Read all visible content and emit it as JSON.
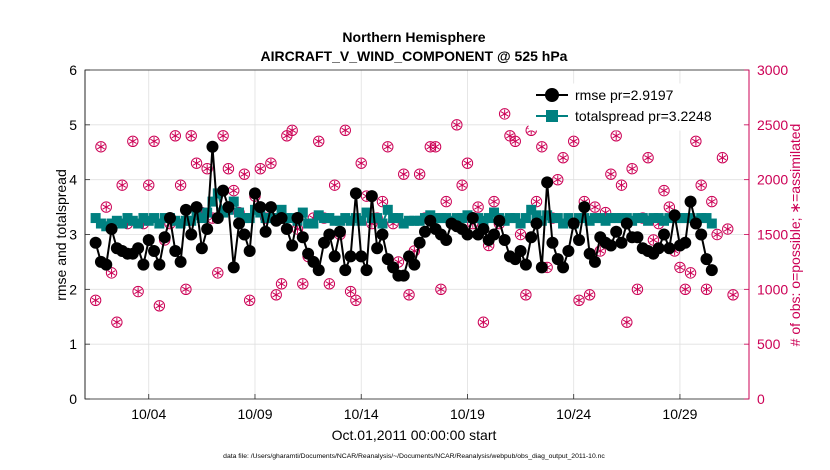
{
  "chart_data": {
    "type": "line",
    "title_line1": "Northern Hemisphere",
    "title_line2": "AIRCRAFT_V_WIND_COMPONENT @ 525 hPa",
    "xlabel": "Oct.01,2011 00:00:00 start",
    "ylabel_left": "rmse and totalspread",
    "ylabel_right": "# of obs: o=possible; ∗=assimilated",
    "footer": "data file: /Users/gharamti/Documents/NCAR/Reanalysis/~/Documents/NCAR/Reanalysis/webpub/obs_diag_output_2011-10.nc",
    "xlim": [
      0.5,
      31.75
    ],
    "ylim_left": [
      0,
      6
    ],
    "ylim_right": [
      0,
      3000
    ],
    "x_ticks": [
      3.5,
      8.5,
      13.5,
      18.5,
      23.5,
      28.5
    ],
    "x_tick_labels": [
      "10/04",
      "10/09",
      "10/14",
      "10/19",
      "10/24",
      "10/29"
    ],
    "y_left_ticks": [
      0,
      1,
      2,
      3,
      4,
      5,
      6
    ],
    "y_left_tick_labels": [
      "0",
      "1",
      "2",
      "3",
      "4",
      "5",
      "6"
    ],
    "y_right_ticks": [
      0,
      500,
      1000,
      1500,
      2000,
      2500,
      3000
    ],
    "y_right_tick_labels": [
      "0",
      "500",
      "1000",
      "1500",
      "2000",
      "2500",
      "3000"
    ],
    "colors": {
      "rmse": "#000000",
      "spread": "#008080",
      "obs": "#cc0055",
      "grid": "#e0e0e0"
    },
    "legend": {
      "rmse_label": "rmse pr=2.9197",
      "spread_label": "totalspread pr=3.2248",
      "position": "top-right"
    },
    "series": [
      {
        "name": "rmse",
        "values": [
          2.85,
          2.5,
          2.45,
          3.1,
          2.75,
          2.7,
          2.65,
          2.65,
          2.75,
          2.45,
          2.9,
          2.7,
          2.45,
          2.95,
          3.3,
          2.7,
          2.5,
          3.45,
          3.0,
          3.5,
          2.75,
          3.1,
          4.6,
          3.3,
          3.8,
          3.5,
          2.4,
          3.2,
          3.0,
          2.7,
          3.75,
          3.5,
          3.05,
          3.5,
          3.25,
          3.3,
          3.1,
          2.8,
          3.3,
          2.95,
          2.65,
          2.5,
          2.35,
          2.85,
          3.0,
          2.6,
          3.05,
          2.35,
          2.6,
          3.75,
          2.6,
          2.35,
          3.7,
          2.75,
          3.0,
          2.55,
          2.4,
          2.25,
          2.25,
          2.6,
          2.45,
          2.85,
          3.05,
          3.25,
          3.1,
          3.0,
          2.9,
          3.2,
          3.15,
          3.1,
          3.0,
          3.3,
          3.0,
          3.1,
          2.9,
          3.0,
          3.25,
          2.9,
          2.6,
          2.55,
          2.7,
          2.45,
          2.95,
          3.2,
          2.4,
          3.95,
          2.85,
          2.55,
          2.4,
          2.7,
          3.2,
          2.9,
          3.5,
          2.65,
          2.5,
          2.95,
          2.85,
          2.8,
          3.05,
          2.85,
          3.2,
          2.95,
          2.95,
          2.75,
          2.7,
          2.65,
          2.75,
          3.0,
          2.75,
          3.35,
          2.8,
          2.85,
          3.6,
          3.2,
          3.0,
          2.55,
          2.35
        ],
        "x_start": 1.0,
        "x_step": 0.25
      },
      {
        "name": "totalspread",
        "values": [
          3.3,
          3.2,
          3.15,
          3.2,
          3.25,
          3.2,
          3.3,
          3.25,
          3.2,
          3.3,
          3.25,
          3.3,
          3.2,
          3.3,
          3.3,
          3.25,
          3.2,
          3.25,
          3.25,
          3.35,
          3.3,
          3.4,
          3.6,
          3.75,
          3.4,
          3.45,
          3.6,
          3.4,
          3.3,
          3.3,
          3.45,
          3.4,
          3.3,
          3.3,
          3.3,
          3.45,
          3.3,
          3.3,
          3.25,
          3.4,
          3.2,
          3.2,
          3.35,
          3.3,
          3.3,
          3.25,
          3.25,
          3.3,
          3.25,
          3.3,
          3.25,
          3.4,
          3.3,
          3.3,
          3.2,
          3.45,
          3.3,
          3.3,
          3.2,
          3.25,
          3.25,
          3.25,
          3.3,
          3.35,
          3.3,
          3.3,
          3.3,
          3.25,
          3.3,
          3.3,
          3.35,
          3.3,
          3.3,
          3.25,
          3.3,
          3.4,
          3.3,
          3.25,
          3.3,
          3.3,
          3.2,
          3.3,
          3.45,
          3.35,
          3.25,
          3.35,
          3.3,
          3.3,
          3.2,
          3.3,
          3.2,
          3.3,
          3.3,
          3.25,
          3.3,
          3.3,
          3.25,
          3.3,
          3.3,
          3.3,
          3.3,
          3.25,
          3.3,
          3.3,
          3.25,
          3.3,
          3.3,
          3.25,
          3.3,
          3.3,
          3.3,
          3.3,
          3.3,
          3.25,
          3.3,
          3.3,
          3.2
        ],
        "x_start": 1.0,
        "x_step": 0.25
      },
      {
        "name": "obs_possible",
        "values": [
          900,
          2300,
          1750,
          1150,
          700,
          1950,
          1600,
          2350,
          980,
          1600,
          1950,
          2350,
          850,
          1450,
          1600,
          2400,
          1950,
          1000,
          2400,
          2150,
          1700,
          2100,
          1650,
          1150,
          2400,
          2100,
          1900,
          1700,
          2050,
          900,
          1850,
          2100,
          1650,
          2150,
          950,
          1050,
          2400,
          2450,
          1550,
          1050,
          1300,
          1650,
          2350,
          1650,
          1050,
          1950,
          1500,
          2450,
          980,
          900,
          2150,
          1850,
          1600,
          1650,
          1800,
          2300,
          1600,
          1250,
          2050,
          950,
          1350,
          2050,
          1650,
          2300,
          2300,
          1000,
          1800,
          1600,
          2500,
          1950,
          2150,
          1600,
          1750,
          700,
          1400,
          1800,
          1600,
          2600,
          2400,
          2350,
          1500,
          950,
          2450,
          1800,
          2300,
          1200,
          1650,
          2000,
          2200,
          1350,
          2350,
          900,
          1800,
          950,
          1750,
          1350,
          1700,
          2050,
          2400,
          1950,
          700,
          2100,
          1000,
          1650,
          2200,
          1450,
          1600,
          1900,
          1750,
          1350,
          1200,
          1000,
          1150,
          2350,
          1950,
          1000,
          1800,
          1500,
          2200,
          1550,
          950
        ],
        "x_start": 1.0,
        "x_step": 0.25
      }
    ]
  }
}
